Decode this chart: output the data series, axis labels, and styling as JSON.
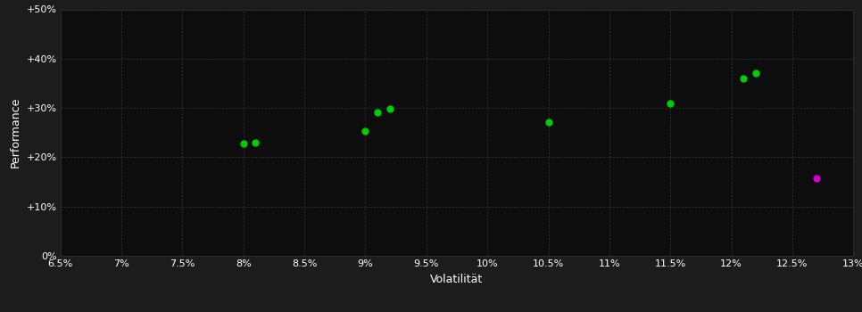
{
  "background_color": "#1c1c1c",
  "plot_bg_color": "#0d0d0d",
  "grid_color": "#333333",
  "text_color": "#ffffff",
  "xlabel": "Volatilität",
  "ylabel": "Performance",
  "xlim": [
    0.065,
    0.13
  ],
  "ylim": [
    0.0,
    0.5
  ],
  "xtick_vals": [
    0.065,
    0.07,
    0.075,
    0.08,
    0.085,
    0.09,
    0.095,
    0.1,
    0.105,
    0.11,
    0.115,
    0.12,
    0.125,
    0.13
  ],
  "xtick_labels": [
    "6.5%",
    "7%",
    "7.5%",
    "8%",
    "8.5%",
    "9%",
    "9.5%",
    "10%",
    "10.5%",
    "11%",
    "11.5%",
    "12%",
    "12.5%",
    "13%"
  ],
  "ytick_vals": [
    0.0,
    0.1,
    0.2,
    0.3,
    0.4,
    0.5
  ],
  "ytick_labels": [
    "0%",
    "+10%",
    "+20%",
    "+30%",
    "+40%",
    "+50%"
  ],
  "green_points": [
    [
      0.08,
      0.228
    ],
    [
      0.081,
      0.23
    ],
    [
      0.09,
      0.254
    ],
    [
      0.091,
      0.292
    ],
    [
      0.092,
      0.298
    ],
    [
      0.105,
      0.272
    ],
    [
      0.115,
      0.31
    ],
    [
      0.121,
      0.36
    ],
    [
      0.122,
      0.37
    ]
  ],
  "magenta_points": [
    [
      0.127,
      0.158
    ]
  ],
  "green_color": "#00cc00",
  "magenta_color": "#cc00cc",
  "marker_size": 25,
  "label_fontsize": 9,
  "tick_fontsize": 8
}
